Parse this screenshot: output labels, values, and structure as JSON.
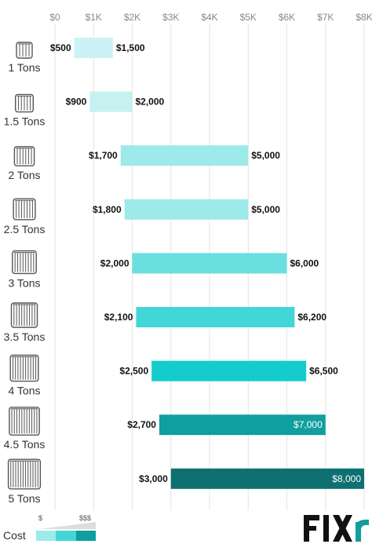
{
  "chart_data": {
    "type": "bar",
    "orientation": "horizontal-range",
    "categories": [
      "1 Tons",
      "1.5 Tons",
      "2 Tons",
      "2.5 Tons",
      "3 Tons",
      "3.5 Tons",
      "4 Tons",
      "4.5 Tons",
      "5 Tons"
    ],
    "low": [
      500,
      900,
      1700,
      1800,
      2000,
      2100,
      2500,
      2700,
      3000
    ],
    "high": [
      1500,
      2000,
      5000,
      5000,
      6000,
      6200,
      6500,
      7000,
      8000
    ],
    "low_labels": [
      "$500",
      "$900",
      "$1,700",
      "$1,800",
      "$2,000",
      "$2,100",
      "$2,500",
      "$2,700",
      "$3,000"
    ],
    "high_labels": [
      "$1,500",
      "$2,000",
      "$5,000",
      "$5,000",
      "$6,000",
      "$6,200",
      "$6,500",
      "$7,000",
      "$8,000"
    ],
    "xlim": [
      0,
      8000
    ],
    "xticks": [
      0,
      1000,
      2000,
      3000,
      4000,
      5000,
      6000,
      7000,
      8000
    ],
    "xtick_labels": [
      "$0",
      "$1K",
      "$2K",
      "$3K",
      "$4K",
      "$5K",
      "$6K",
      "$7K",
      "$8K"
    ],
    "grid": "vertical",
    "title": "",
    "xlabel": "",
    "ylabel": "",
    "colors": [
      "#ccf3f3",
      "#c6f1f1",
      "#9deaea",
      "#9deaea",
      "#6adfdf",
      "#42d6d6",
      "#14cccc",
      "#119e9e",
      "#0e7070"
    ],
    "icon": "ac-unit-icon"
  },
  "legend": {
    "title": "Cost",
    "low": "$",
    "high": "$$$",
    "colors": [
      "#9deaea",
      "#42d6d6",
      "#119e9e"
    ]
  },
  "brand": {
    "name": "FIXR",
    "color": "#119e9e"
  }
}
